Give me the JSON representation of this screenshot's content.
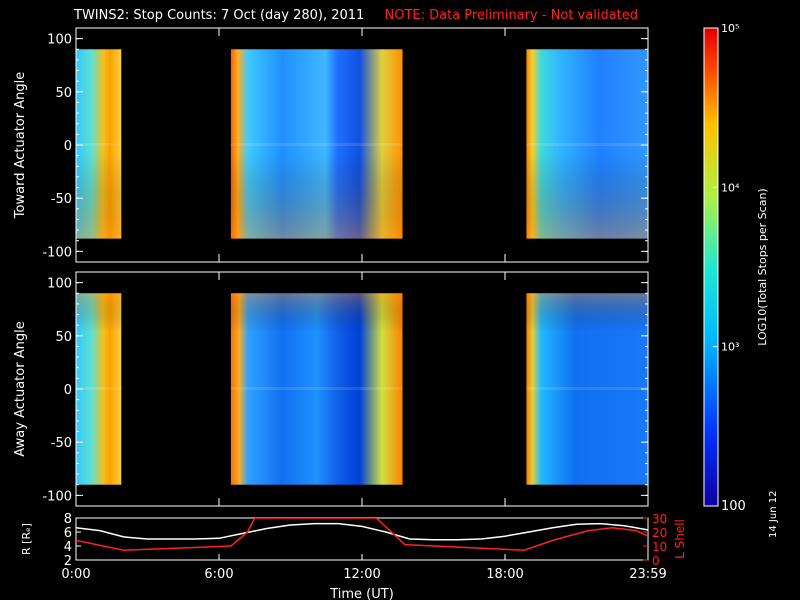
{
  "title": {
    "main": "TWINS2: Stop Counts:  7 Oct (day 280), 2011",
    "note": "NOTE: Data Preliminary - Not validated"
  },
  "date_stamp": "14 Jun 12",
  "colors": {
    "background": "#000000",
    "axis": "#ffffff",
    "note": "#ff2020",
    "r_line": "#ffffff",
    "lshell_line": "#ff2020"
  },
  "chart_data": [
    {
      "type": "heatmap",
      "panel": "top",
      "ylabel": "Toward Actuator Angle",
      "ylim": [
        -110,
        110
      ],
      "yticks": [
        "-100",
        "-50",
        "0",
        "50",
        "100"
      ],
      "xlim": [
        0,
        24
      ],
      "data_intervals_hours": [
        [
          0.0,
          1.9
        ],
        [
          6.5,
          13.7
        ],
        [
          18.9,
          24.0
        ]
      ],
      "angle_coverage": [
        -88,
        90
      ],
      "colorscale": "log"
    },
    {
      "type": "heatmap",
      "panel": "middle",
      "ylabel": "Away Actuator Angle",
      "ylim": [
        -110,
        110
      ],
      "yticks": [
        "-100",
        "-50",
        "0",
        "50",
        "100"
      ],
      "xlim": [
        0,
        24
      ],
      "data_intervals_hours": [
        [
          0.0,
          1.9
        ],
        [
          6.5,
          13.7
        ],
        [
          18.9,
          24.0
        ]
      ],
      "angle_coverage": [
        -90,
        90
      ],
      "colorscale": "log"
    },
    {
      "type": "line",
      "panel": "bottom",
      "ylabel_left": "R [Rₑ]",
      "ylabel_right": "L Shell",
      "ylim_left": [
        2,
        8
      ],
      "ylim_right": [
        0,
        30
      ],
      "yticks_left": [
        "2",
        "4",
        "6",
        "8"
      ],
      "yticks_right": [
        "0",
        "10",
        "20",
        "30"
      ],
      "xlabel": "Time (UT)",
      "xticks": [
        "0:00",
        "6:00",
        "12:00",
        "18:00",
        "23:59"
      ],
      "xtick_hours": [
        0,
        6,
        12,
        18,
        24
      ],
      "series": [
        {
          "axis": "left",
          "x": [
            0,
            1,
            2,
            3,
            4,
            5,
            6,
            7,
            8,
            9,
            10,
            11,
            12,
            13,
            14,
            15,
            16,
            17,
            18,
            19,
            20,
            21,
            22,
            23,
            24
          ],
          "y": [
            6.6,
            6.2,
            5.3,
            5.0,
            5.0,
            5.0,
            5.1,
            5.8,
            6.5,
            7.0,
            7.2,
            7.2,
            6.8,
            6.0,
            5.0,
            4.9,
            4.9,
            5.0,
            5.4,
            6.0,
            6.6,
            7.1,
            7.2,
            6.9,
            6.3
          ]
        },
        {
          "axis": "right",
          "x": [
            0,
            2,
            6.5,
            7.2,
            7.5,
            12.6,
            13.8,
            18.8,
            20,
            21.5,
            22.5,
            23.5,
            24
          ],
          "y": [
            14,
            7,
            10,
            20,
            30,
            30,
            11,
            7,
            14,
            21,
            23,
            21,
            17
          ]
        }
      ]
    },
    {
      "type": "colorbar",
      "label": "LOG10(Total Stops per Scan)",
      "scale": "log",
      "range": [
        100,
        100000
      ],
      "tick_labels": [
        "100",
        "10³",
        "10⁴",
        "10⁵"
      ]
    }
  ]
}
